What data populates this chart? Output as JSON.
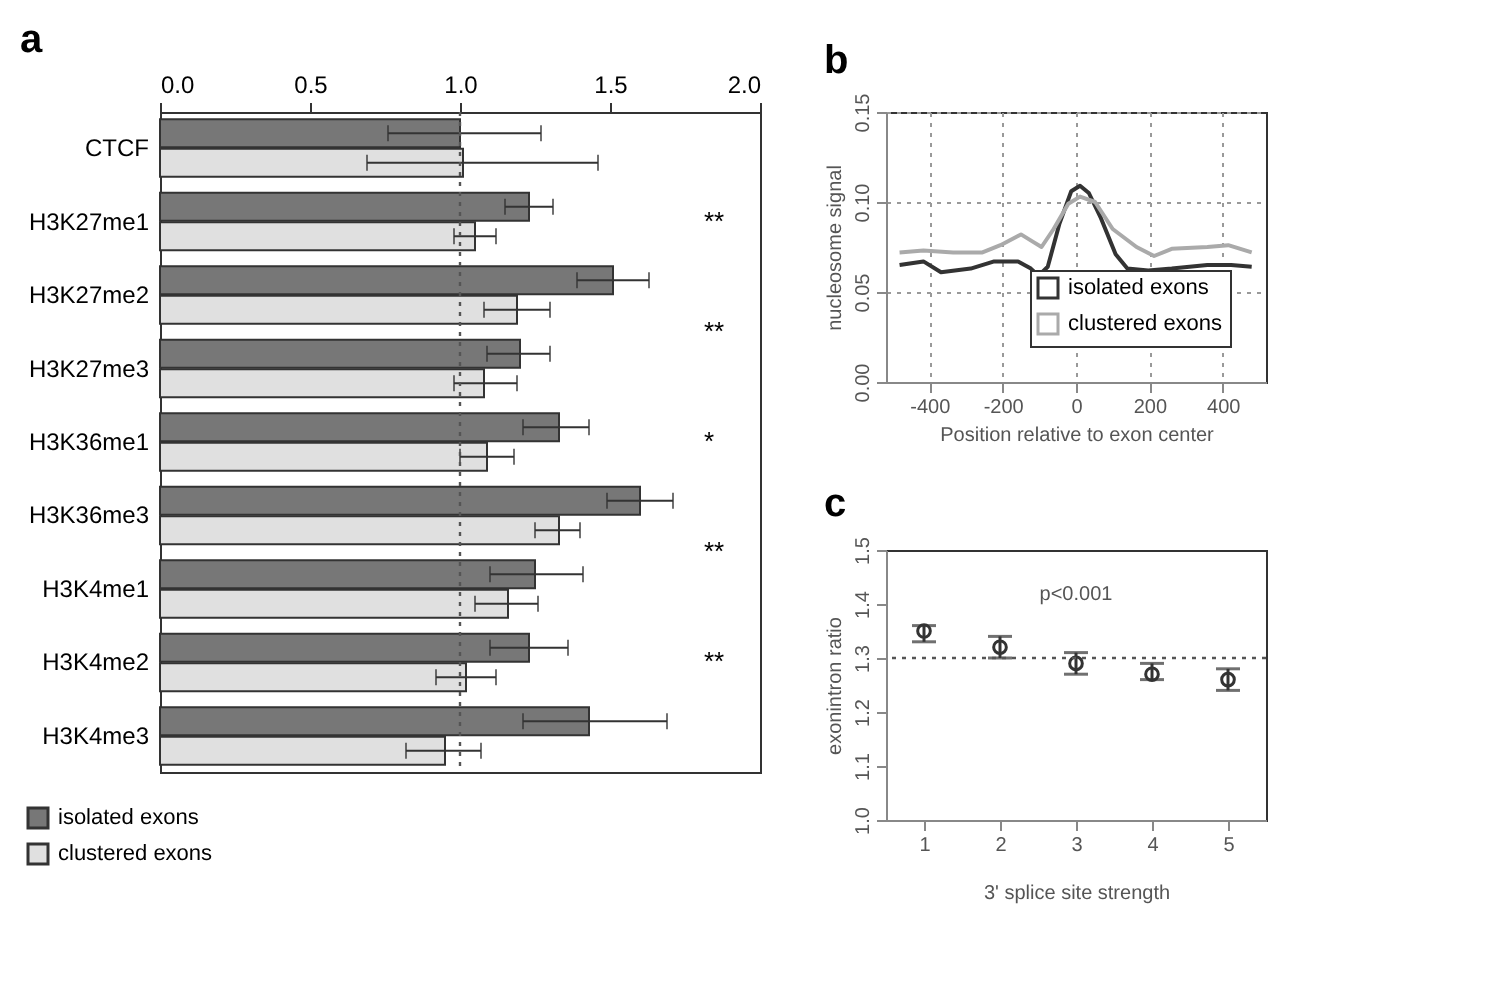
{
  "chart_data": [
    {
      "type": "bar",
      "title": "a",
      "orientation": "horizontal",
      "categories": [
        "CTCF",
        "H3K27me1",
        "H3K27me2",
        "H3K27me3",
        "H3K36me1",
        "H3K36me3",
        "H3K4me1",
        "H3K4me2",
        "H3K4me3"
      ],
      "series": [
        {
          "name": "isolated exons",
          "color": "#777777",
          "values": [
            1.0,
            1.23,
            1.51,
            1.2,
            1.33,
            1.6,
            1.25,
            1.23,
            1.43
          ],
          "errors": [
            [
              0.76,
              1.27
            ],
            [
              1.15,
              1.31
            ],
            [
              1.39,
              1.63
            ],
            [
              1.09,
              1.3
            ],
            [
              1.21,
              1.43
            ],
            [
              1.49,
              1.71
            ],
            [
              1.1,
              1.41
            ],
            [
              1.1,
              1.36
            ],
            [
              1.21,
              1.69
            ]
          ]
        },
        {
          "name": "clustered exons",
          "color": "#e0e0e0",
          "values": [
            1.01,
            1.05,
            1.19,
            1.08,
            1.09,
            1.33,
            1.16,
            1.02,
            0.95
          ],
          "errors": [
            [
              0.69,
              1.46
            ],
            [
              0.98,
              1.12
            ],
            [
              1.08,
              1.3
            ],
            [
              0.98,
              1.19
            ],
            [
              1.0,
              1.18
            ],
            [
              1.25,
              1.4
            ],
            [
              1.05,
              1.26
            ],
            [
              0.92,
              1.12
            ],
            [
              0.82,
              1.07
            ]
          ]
        }
      ],
      "xlim": [
        0,
        2
      ],
      "xticks": [
        {
          "value": 0,
          "label": "0.0"
        },
        {
          "value": 0.5,
          "label": "0.5"
        },
        {
          "value": 1,
          "label": "1.0"
        },
        {
          "value": 1.5,
          "label": "1.5"
        },
        {
          "value": 2,
          "label": "2.0"
        }
      ],
      "ref_lines": [
        {
          "axis": "x",
          "value": 1,
          "line_style": "dotted"
        }
      ],
      "annotations": [
        "**",
        "**",
        "*",
        "**",
        "**"
      ],
      "legend": "bottom left",
      "grid": false
    },
    {
      "type": "line",
      "title": "b",
      "xlabel": "Position relative to exon center",
      "ylabel": "nucleosome signal",
      "series": [
        {
          "name": "isolated exons",
          "color": "#333333",
          "x": [
            -481,
            -416,
            -368,
            -287,
            -223,
            -158,
            -123,
            -102,
            -77,
            -45,
            -13,
            11,
            35,
            68,
            108,
            140,
            197,
            261,
            358,
            423,
            479
          ],
          "values": [
            0.065,
            0.067,
            0.061,
            0.063,
            0.067,
            0.067,
            0.063,
            0.059,
            0.064,
            0.088,
            0.106,
            0.109,
            0.105,
            0.091,
            0.071,
            0.063,
            0.062,
            0.063,
            0.065,
            0.065,
            0.064
          ]
        },
        {
          "name": "clustered exons",
          "color": "#aaaaaa",
          "x": [
            -481,
            -416,
            -335,
            -255,
            -206,
            -150,
            -118,
            -94,
            -61,
            -21,
            11,
            52,
            100,
            165,
            213,
            261,
            358,
            415,
            479
          ],
          "values": [
            0.072,
            0.073,
            0.072,
            0.072,
            0.076,
            0.082,
            0.078,
            0.075,
            0.085,
            0.099,
            0.103,
            0.1,
            0.085,
            0.075,
            0.07,
            0.074,
            0.075,
            0.076,
            0.072
          ]
        }
      ],
      "xlim": [
        -518,
        518
      ],
      "xticks": [
        -400,
        -200,
        0,
        200,
        400
      ],
      "ylim": [
        0,
        0.15
      ],
      "yticks": [
        {
          "value": 0,
          "label": "0.00"
        },
        {
          "value": 0.05,
          "label": "0.05"
        },
        {
          "value": 0.1,
          "label": "0.10"
        },
        {
          "value": 0.15,
          "label": "0.15"
        }
      ],
      "grid": true,
      "legend": "bottom right"
    },
    {
      "type": "scatter",
      "title": "c",
      "xlabel": "3' splice site strength",
      "ylabel": "exonintron ratio",
      "categories": [
        "1",
        "2",
        "3",
        "4",
        "5"
      ],
      "series": [
        {
          "color": "#333333",
          "values": [
            1.35,
            1.32,
            1.29,
            1.27,
            1.26
          ],
          "errors": [
            [
              1.33,
              1.36
            ],
            [
              1.3,
              1.34
            ],
            [
              1.27,
              1.31
            ],
            [
              1.26,
              1.29
            ],
            [
              1.24,
              1.28
            ]
          ]
        }
      ],
      "ylim": [
        1.0,
        1.5
      ],
      "yticks": [
        {
          "value": 1,
          "label": "1.0"
        },
        {
          "value": 1.1,
          "label": "1.1"
        },
        {
          "value": 1.2,
          "label": "1.2"
        },
        {
          "value": 1.3,
          "label": "1.3"
        },
        {
          "value": 1.4,
          "label": "1.4"
        },
        {
          "value": 1.5,
          "label": "1.5"
        }
      ],
      "ref_lines": [
        {
          "axis": "y",
          "value": 1.3,
          "line_style": "dotted"
        }
      ],
      "annotations": [
        "p<0.001"
      ],
      "marker": "circle"
    }
  ]
}
